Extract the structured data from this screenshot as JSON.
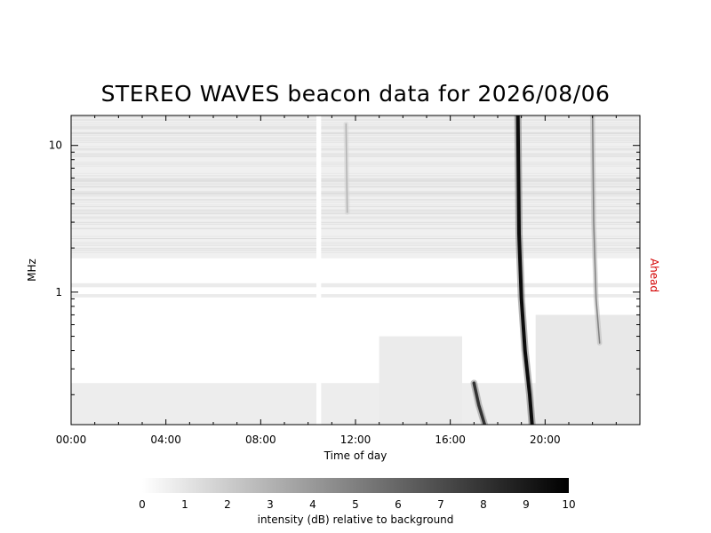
{
  "chart_data": {
    "type": "heatmap",
    "title": "STEREO WAVES beacon data for 2026/08/06",
    "xlabel": "Time of day",
    "ylabel": "MHz",
    "side_label": "Ahead",
    "side_label_color": "#d40000",
    "x_unit": "hours",
    "x_range": [
      0,
      24
    ],
    "x_ticks": [
      {
        "value": 0,
        "label": "00:00"
      },
      {
        "value": 4,
        "label": "04:00"
      },
      {
        "value": 8,
        "label": "08:00"
      },
      {
        "value": 12,
        "label": "12:00"
      },
      {
        "value": 16,
        "label": "16:00"
      },
      {
        "value": 20,
        "label": "20:00"
      }
    ],
    "y_scale": "log",
    "y_range_mhz": [
      0.125,
      16
    ],
    "y_ticks": [
      {
        "value": 1,
        "label": "1"
      },
      {
        "value": 10,
        "label": "10"
      }
    ],
    "data_gap_hours": [
      10.35,
      10.55
    ],
    "background_bands": [
      {
        "name": "upper-noise",
        "freq_mhz": [
          1.7,
          16
        ],
        "time_hours": [
          0,
          24
        ],
        "intensity_db": 0.6
      },
      {
        "name": "line-1.1mhz",
        "freq_mhz": [
          1.08,
          1.15
        ],
        "time_hours": [
          0,
          24
        ],
        "intensity_db": 0.8
      },
      {
        "name": "line-0.95mhz",
        "freq_mhz": [
          0.92,
          0.97
        ],
        "time_hours": [
          0,
          24
        ],
        "intensity_db": 0.8
      },
      {
        "name": "lower-noise",
        "freq_mhz": [
          0.125,
          0.24
        ],
        "time_hours": [
          0,
          24
        ],
        "intensity_db": 0.7
      },
      {
        "name": "mid-patch",
        "freq_mhz": [
          0.125,
          0.5
        ],
        "time_hours": [
          13,
          16.5
        ],
        "intensity_db": 0.8
      },
      {
        "name": "post-burst-patch",
        "freq_mhz": [
          0.125,
          0.7
        ],
        "time_hours": [
          19.6,
          24
        ],
        "intensity_db": 0.9
      }
    ],
    "radio_bursts": [
      {
        "name": "burst-1",
        "path": [
          [
            17.0,
            0.24
          ],
          [
            17.2,
            0.17
          ],
          [
            17.45,
            0.125
          ]
        ],
        "intensity_db": 8
      },
      {
        "name": "burst-2",
        "path": [
          [
            18.85,
            16
          ],
          [
            18.9,
            2.5
          ],
          [
            19.0,
            0.9
          ],
          [
            19.15,
            0.4
          ],
          [
            19.35,
            0.2
          ],
          [
            19.45,
            0.125
          ]
        ],
        "intensity_db": 9.5
      },
      {
        "name": "burst-3",
        "path": [
          [
            22.0,
            16
          ],
          [
            22.05,
            3.0
          ],
          [
            22.15,
            0.9
          ],
          [
            22.3,
            0.45
          ]
        ],
        "intensity_db": 5
      },
      {
        "name": "faint-1",
        "path": [
          [
            11.6,
            14
          ],
          [
            11.65,
            3.5
          ]
        ],
        "intensity_db": 3
      }
    ],
    "colorbar": {
      "label": "intensity (dB) relative to background",
      "ticks": [
        "0",
        "1",
        "2",
        "3",
        "4",
        "5",
        "6",
        "7",
        "8",
        "9",
        "10"
      ],
      "range": [
        0,
        10
      ],
      "color_low": "#ffffff",
      "color_high": "#000000"
    }
  }
}
